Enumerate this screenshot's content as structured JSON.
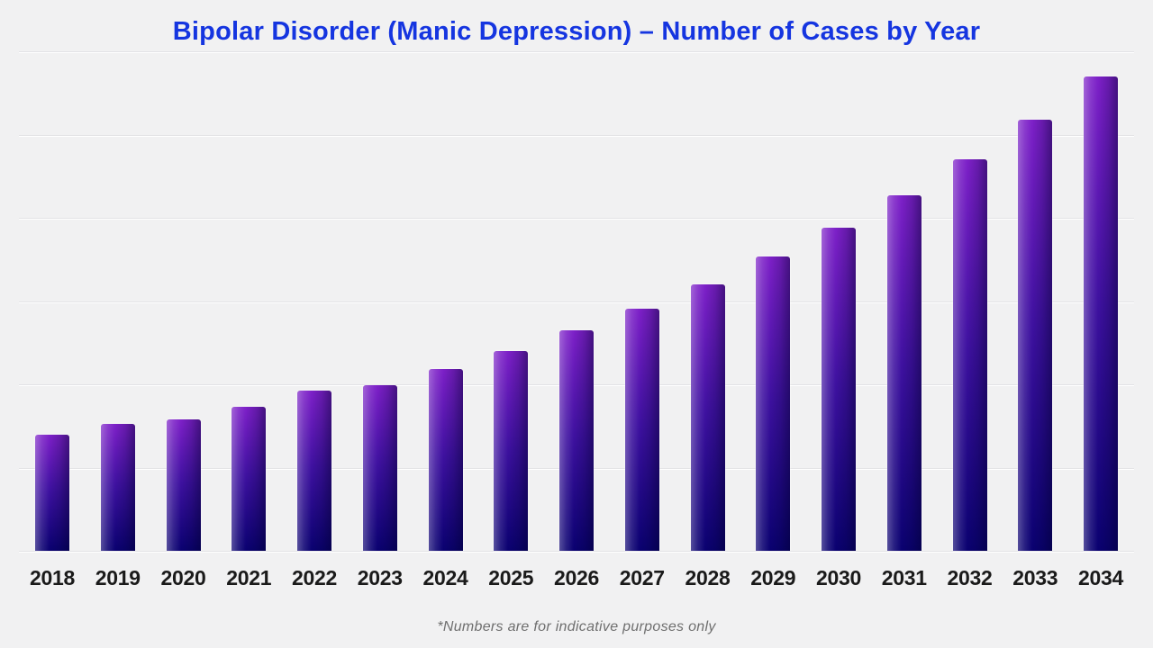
{
  "chart_data": {
    "type": "bar",
    "title": "Bipolar Disorder (Manic Depression) – Number of Cases by Year",
    "footnote": "*Numbers are for indicative purposes only",
    "categories": [
      "2018",
      "2019",
      "2020",
      "2021",
      "2022",
      "2023",
      "2024",
      "2025",
      "2026",
      "2027",
      "2028",
      "2029",
      "2030",
      "2031",
      "2032",
      "2033",
      "2034"
    ],
    "values": [
      1.39,
      1.52,
      1.58,
      1.73,
      1.92,
      1.99,
      2.18,
      2.4,
      2.65,
      2.91,
      3.2,
      3.53,
      3.88,
      4.27,
      4.7,
      5.18,
      5.7
    ],
    "xlabel": "",
    "ylabel": "",
    "ylim": [
      0,
      6
    ],
    "y_tick_labels_shown": false,
    "gridline_count": 7,
    "grid": "horizontal",
    "legend": "none"
  },
  "colors": {
    "background": "#f1f1f2",
    "title": "#1535e0",
    "bar_top": "#7d20c8",
    "bar_mid": "#3e11a0",
    "bar_bottom": "#0a0170",
    "bar_highlight": "rgba(255,255,255,0.30)",
    "bar_shade": "rgba(0,0,40,0.45)",
    "gridline": "#e2e2e5",
    "tick_label": "#1a1a1a",
    "footnote": "#6f6f6f"
  }
}
